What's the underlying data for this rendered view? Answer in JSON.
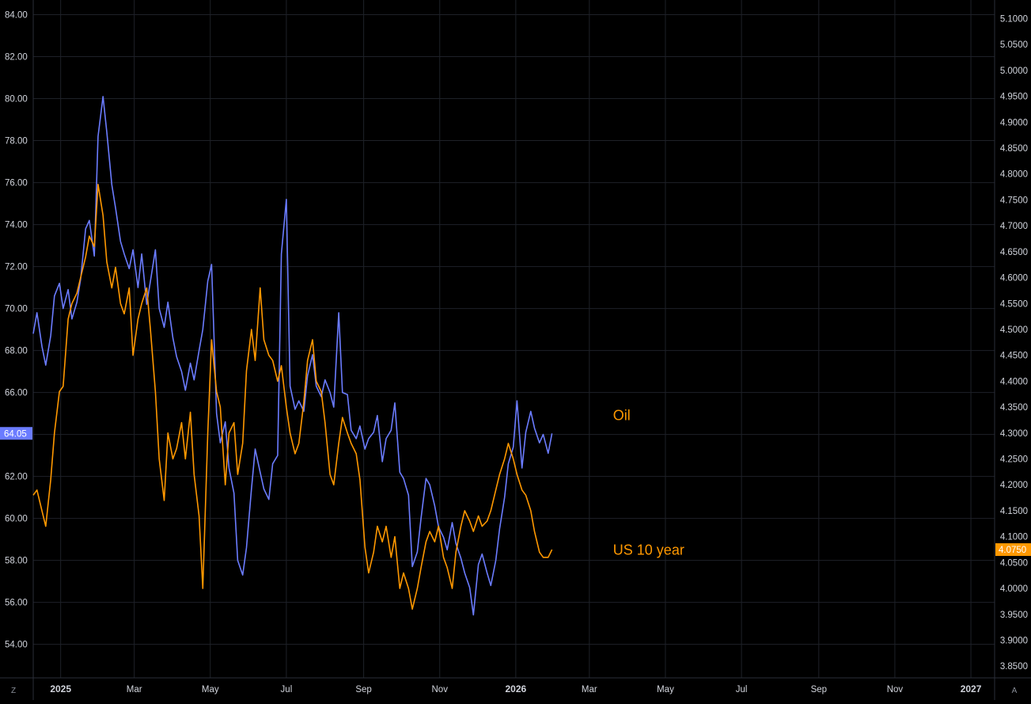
{
  "chart_data": {
    "type": "line",
    "title": "",
    "xlabel": "",
    "ylabel": "",
    "grid": true,
    "legend": "none",
    "x_axis": {
      "range": [
        "2024-12-10",
        "2027-01-20"
      ],
      "ticks": [
        {
          "label": "2025",
          "date": "2025-01-01",
          "year": true
        },
        {
          "label": "Mar",
          "date": "2025-03-01"
        },
        {
          "label": "May",
          "date": "2025-05-01"
        },
        {
          "label": "Jul",
          "date": "2025-07-01"
        },
        {
          "label": "Sep",
          "date": "2025-09-01"
        },
        {
          "label": "Nov",
          "date": "2025-11-01"
        },
        {
          "label": "2026",
          "date": "2026-01-01",
          "year": true
        },
        {
          "label": "Mar",
          "date": "2026-03-01"
        },
        {
          "label": "May",
          "date": "2026-05-01"
        },
        {
          "label": "Jul",
          "date": "2026-07-01"
        },
        {
          "label": "Sep",
          "date": "2026-09-01"
        },
        {
          "label": "Nov",
          "date": "2026-11-01"
        },
        {
          "label": "2027",
          "date": "2027-01-01",
          "year": true
        }
      ]
    },
    "y_left": {
      "range": [
        52.4,
        84.7
      ],
      "ticks": [
        "54.00",
        "56.00",
        "58.00",
        "60.00",
        "62.00",
        "64.00",
        "66.00",
        "68.00",
        "70.00",
        "72.00",
        "74.00",
        "76.00",
        "78.00",
        "80.00",
        "82.00",
        "84.00"
      ]
    },
    "y_right": {
      "range": [
        3.8274,
        5.1358
      ],
      "ticks": [
        "3.8500",
        "3.9000",
        "3.9500",
        "4.0000",
        "4.0500",
        "4.1000",
        "4.1500",
        "4.2000",
        "4.2500",
        "4.3000",
        "4.3500",
        "4.4000",
        "4.4500",
        "4.5000",
        "4.5500",
        "4.6000",
        "4.6500",
        "4.7000",
        "4.7500",
        "4.8000",
        "4.8500",
        "4.9000",
        "4.9500",
        "5.0000",
        "5.0500",
        "5.1000"
      ]
    },
    "series": [
      {
        "name": "Oil",
        "axis": "left",
        "color": "#6b7cff",
        "last_value_label": "64.05",
        "points": [
          [
            "2024-12-10",
            68.8
          ],
          [
            "2024-12-13",
            69.8
          ],
          [
            "2024-12-17",
            68.2
          ],
          [
            "2024-12-20",
            67.3
          ],
          [
            "2024-12-24",
            68.7
          ],
          [
            "2024-12-27",
            70.6
          ],
          [
            "2024-12-31",
            71.2
          ],
          [
            "2025-01-03",
            70.0
          ],
          [
            "2025-01-07",
            70.9
          ],
          [
            "2025-01-10",
            69.5
          ],
          [
            "2025-01-14",
            70.3
          ],
          [
            "2025-01-17",
            71.4
          ],
          [
            "2025-01-21",
            73.8
          ],
          [
            "2025-01-24",
            74.2
          ],
          [
            "2025-01-28",
            72.5
          ],
          [
            "2025-01-31",
            78.2
          ],
          [
            "2025-02-04",
            80.1
          ],
          [
            "2025-02-07",
            78.4
          ],
          [
            "2025-02-11",
            75.9
          ],
          [
            "2025-02-14",
            74.8
          ],
          [
            "2025-02-18",
            73.2
          ],
          [
            "2025-02-21",
            72.6
          ],
          [
            "2025-02-25",
            71.9
          ],
          [
            "2025-02-28",
            72.8
          ],
          [
            "2025-03-04",
            71.0
          ],
          [
            "2025-03-07",
            72.6
          ],
          [
            "2025-03-11",
            70.2
          ],
          [
            "2025-03-14",
            71.3
          ],
          [
            "2025-03-18",
            72.8
          ],
          [
            "2025-03-21",
            70.0
          ],
          [
            "2025-03-25",
            69.1
          ],
          [
            "2025-03-28",
            70.3
          ],
          [
            "2025-04-01",
            68.6
          ],
          [
            "2025-04-04",
            67.7
          ],
          [
            "2025-04-08",
            67.0
          ],
          [
            "2025-04-11",
            66.1
          ],
          [
            "2025-04-15",
            67.4
          ],
          [
            "2025-04-18",
            66.6
          ],
          [
            "2025-04-22",
            68.0
          ],
          [
            "2025-04-25",
            69.0
          ],
          [
            "2025-04-29",
            71.3
          ],
          [
            "2025-05-02",
            72.1
          ],
          [
            "2025-05-06",
            65.0
          ],
          [
            "2025-05-09",
            63.6
          ],
          [
            "2025-05-13",
            64.6
          ],
          [
            "2025-05-16",
            62.4
          ],
          [
            "2025-05-20",
            61.2
          ],
          [
            "2025-05-23",
            58.0
          ],
          [
            "2025-05-27",
            57.3
          ],
          [
            "2025-05-30",
            58.6
          ],
          [
            "2025-06-03",
            61.4
          ],
          [
            "2025-06-06",
            63.3
          ],
          [
            "2025-06-10",
            62.2
          ],
          [
            "2025-06-13",
            61.4
          ],
          [
            "2025-06-17",
            60.9
          ],
          [
            "2025-06-20",
            62.6
          ],
          [
            "2025-06-24",
            63.0
          ],
          [
            "2025-06-27",
            72.6
          ],
          [
            "2025-07-01",
            75.2
          ],
          [
            "2025-07-04",
            66.3
          ],
          [
            "2025-07-08",
            65.2
          ],
          [
            "2025-07-11",
            65.6
          ],
          [
            "2025-07-15",
            65.1
          ],
          [
            "2025-07-18",
            66.8
          ],
          [
            "2025-07-22",
            67.8
          ],
          [
            "2025-07-25",
            66.3
          ],
          [
            "2025-07-29",
            65.8
          ],
          [
            "2025-08-01",
            66.6
          ],
          [
            "2025-08-05",
            66.0
          ],
          [
            "2025-08-08",
            65.3
          ],
          [
            "2025-08-12",
            69.8
          ],
          [
            "2025-08-15",
            66.0
          ],
          [
            "2025-08-19",
            65.9
          ],
          [
            "2025-08-22",
            64.2
          ],
          [
            "2025-08-26",
            63.8
          ],
          [
            "2025-08-29",
            64.4
          ],
          [
            "2025-09-02",
            63.3
          ],
          [
            "2025-09-05",
            63.8
          ],
          [
            "2025-09-09",
            64.1
          ],
          [
            "2025-09-12",
            64.9
          ],
          [
            "2025-09-16",
            62.7
          ],
          [
            "2025-09-19",
            63.8
          ],
          [
            "2025-09-23",
            64.2
          ],
          [
            "2025-09-26",
            65.5
          ],
          [
            "2025-09-30",
            62.2
          ],
          [
            "2025-10-03",
            61.9
          ],
          [
            "2025-10-07",
            61.1
          ],
          [
            "2025-10-10",
            57.7
          ],
          [
            "2025-10-14",
            58.4
          ],
          [
            "2025-10-17",
            60.0
          ],
          [
            "2025-10-21",
            61.9
          ],
          [
            "2025-10-24",
            61.6
          ],
          [
            "2025-10-28",
            60.6
          ],
          [
            "2025-10-31",
            59.6
          ],
          [
            "2025-11-04",
            59.1
          ],
          [
            "2025-11-07",
            58.5
          ],
          [
            "2025-11-11",
            59.8
          ],
          [
            "2025-11-14",
            58.8
          ],
          [
            "2025-11-18",
            58.1
          ],
          [
            "2025-11-21",
            57.4
          ],
          [
            "2025-11-25",
            56.7
          ],
          [
            "2025-11-28",
            55.4
          ],
          [
            "2025-12-02",
            57.8
          ],
          [
            "2025-12-05",
            58.3
          ],
          [
            "2025-12-09",
            57.4
          ],
          [
            "2025-12-12",
            56.8
          ],
          [
            "2025-12-16",
            58.0
          ],
          [
            "2025-12-19",
            59.5
          ],
          [
            "2025-12-23",
            61.0
          ],
          [
            "2025-12-26",
            62.6
          ],
          [
            "2025-12-30",
            63.4
          ],
          [
            "2026-01-02",
            65.6
          ],
          [
            "2026-01-06",
            62.4
          ],
          [
            "2026-01-09",
            64.1
          ],
          [
            "2026-01-13",
            65.1
          ],
          [
            "2026-01-16",
            64.3
          ],
          [
            "2026-01-20",
            63.6
          ],
          [
            "2026-01-23",
            64.0
          ],
          [
            "2026-01-27",
            63.1
          ],
          [
            "2026-01-30",
            64.05
          ]
        ]
      },
      {
        "name": "US 10 year",
        "axis": "right",
        "color": "#ff9800",
        "last_value_label": "4.0750",
        "points": [
          [
            "2024-12-10",
            4.18
          ],
          [
            "2024-12-13",
            4.19
          ],
          [
            "2024-12-17",
            4.15
          ],
          [
            "2024-12-20",
            4.12
          ],
          [
            "2024-12-24",
            4.21
          ],
          [
            "2024-12-27",
            4.3
          ],
          [
            "2024-12-31",
            4.38
          ],
          [
            "2025-01-03",
            4.39
          ],
          [
            "2025-01-07",
            4.52
          ],
          [
            "2025-01-10",
            4.55
          ],
          [
            "2025-01-14",
            4.57
          ],
          [
            "2025-01-17",
            4.6
          ],
          [
            "2025-01-21",
            4.64
          ],
          [
            "2025-01-24",
            4.68
          ],
          [
            "2025-01-28",
            4.66
          ],
          [
            "2025-01-31",
            4.78
          ],
          [
            "2025-02-04",
            4.72
          ],
          [
            "2025-02-07",
            4.63
          ],
          [
            "2025-02-11",
            4.58
          ],
          [
            "2025-02-14",
            4.62
          ],
          [
            "2025-02-18",
            4.55
          ],
          [
            "2025-02-21",
            4.53
          ],
          [
            "2025-02-25",
            4.58
          ],
          [
            "2025-02-28",
            4.45
          ],
          [
            "2025-03-04",
            4.52
          ],
          [
            "2025-03-07",
            4.55
          ],
          [
            "2025-03-11",
            4.58
          ],
          [
            "2025-03-14",
            4.5
          ],
          [
            "2025-03-18",
            4.38
          ],
          [
            "2025-03-21",
            4.25
          ],
          [
            "2025-03-25",
            4.17
          ],
          [
            "2025-03-28",
            4.3
          ],
          [
            "2025-04-01",
            4.25
          ],
          [
            "2025-04-04",
            4.27
          ],
          [
            "2025-04-08",
            4.32
          ],
          [
            "2025-04-11",
            4.25
          ],
          [
            "2025-04-15",
            4.34
          ],
          [
            "2025-04-18",
            4.22
          ],
          [
            "2025-04-22",
            4.14
          ],
          [
            "2025-04-25",
            4.0
          ],
          [
            "2025-04-29",
            4.3
          ],
          [
            "2025-05-02",
            4.48
          ],
          [
            "2025-05-06",
            4.38
          ],
          [
            "2025-05-09",
            4.35
          ],
          [
            "2025-05-13",
            4.2
          ],
          [
            "2025-05-16",
            4.3
          ],
          [
            "2025-05-20",
            4.32
          ],
          [
            "2025-05-23",
            4.22
          ],
          [
            "2025-05-27",
            4.28
          ],
          [
            "2025-05-30",
            4.42
          ],
          [
            "2025-06-03",
            4.5
          ],
          [
            "2025-06-06",
            4.44
          ],
          [
            "2025-06-10",
            4.58
          ],
          [
            "2025-06-13",
            4.48
          ],
          [
            "2025-06-17",
            4.45
          ],
          [
            "2025-06-20",
            4.44
          ],
          [
            "2025-06-24",
            4.4
          ],
          [
            "2025-06-27",
            4.43
          ],
          [
            "2025-07-01",
            4.35
          ],
          [
            "2025-07-04",
            4.3
          ],
          [
            "2025-07-08",
            4.26
          ],
          [
            "2025-07-11",
            4.28
          ],
          [
            "2025-07-15",
            4.36
          ],
          [
            "2025-07-18",
            4.44
          ],
          [
            "2025-07-22",
            4.48
          ],
          [
            "2025-07-25",
            4.4
          ],
          [
            "2025-07-29",
            4.38
          ],
          [
            "2025-08-01",
            4.32
          ],
          [
            "2025-08-05",
            4.22
          ],
          [
            "2025-08-08",
            4.2
          ],
          [
            "2025-08-12",
            4.28
          ],
          [
            "2025-08-15",
            4.33
          ],
          [
            "2025-08-19",
            4.3
          ],
          [
            "2025-08-22",
            4.28
          ],
          [
            "2025-08-26",
            4.26
          ],
          [
            "2025-08-29",
            4.21
          ],
          [
            "2025-09-02",
            4.08
          ],
          [
            "2025-09-05",
            4.03
          ],
          [
            "2025-09-09",
            4.07
          ],
          [
            "2025-09-12",
            4.12
          ],
          [
            "2025-09-16",
            4.09
          ],
          [
            "2025-09-19",
            4.12
          ],
          [
            "2025-09-23",
            4.06
          ],
          [
            "2025-09-26",
            4.1
          ],
          [
            "2025-09-30",
            4.0
          ],
          [
            "2025-10-03",
            4.03
          ],
          [
            "2025-10-07",
            4.0
          ],
          [
            "2025-10-10",
            3.96
          ],
          [
            "2025-10-14",
            4.0
          ],
          [
            "2025-10-17",
            4.04
          ],
          [
            "2025-10-21",
            4.09
          ],
          [
            "2025-10-24",
            4.11
          ],
          [
            "2025-10-28",
            4.09
          ],
          [
            "2025-10-31",
            4.12
          ],
          [
            "2025-11-04",
            4.06
          ],
          [
            "2025-11-07",
            4.04
          ],
          [
            "2025-11-11",
            4.0
          ],
          [
            "2025-11-14",
            4.07
          ],
          [
            "2025-11-18",
            4.12
          ],
          [
            "2025-11-21",
            4.15
          ],
          [
            "2025-11-25",
            4.13
          ],
          [
            "2025-11-28",
            4.11
          ],
          [
            "2025-12-02",
            4.14
          ],
          [
            "2025-12-05",
            4.12
          ],
          [
            "2025-12-09",
            4.13
          ],
          [
            "2025-12-12",
            4.15
          ],
          [
            "2025-12-16",
            4.19
          ],
          [
            "2025-12-19",
            4.22
          ],
          [
            "2025-12-23",
            4.25
          ],
          [
            "2025-12-26",
            4.28
          ],
          [
            "2025-12-30",
            4.25
          ],
          [
            "2026-01-02",
            4.22
          ],
          [
            "2026-01-06",
            4.19
          ],
          [
            "2026-01-09",
            4.18
          ],
          [
            "2026-01-13",
            4.15
          ],
          [
            "2026-01-16",
            4.11
          ],
          [
            "2026-01-20",
            4.07
          ],
          [
            "2026-01-23",
            4.06
          ],
          [
            "2026-01-27",
            4.06
          ],
          [
            "2026-01-30",
            4.075
          ]
        ]
      }
    ],
    "annotations": [
      {
        "text": "Oil",
        "color": "#ff9800",
        "at_date": "2026-03-20",
        "at_left_value": 64.9
      },
      {
        "text": "US 10 year",
        "color": "#ff9800",
        "at_date": "2026-03-20",
        "at_left_value": 58.5
      }
    ],
    "colors": {
      "background": "#000000",
      "grid": "#1e2128",
      "axis_text": "#d1d4dc",
      "axis_border": "#2a2e39",
      "oil_line": "#6b7cff",
      "yield_line": "#ff9800"
    }
  },
  "ui": {
    "corner_left": "Z",
    "corner_right": "A"
  }
}
